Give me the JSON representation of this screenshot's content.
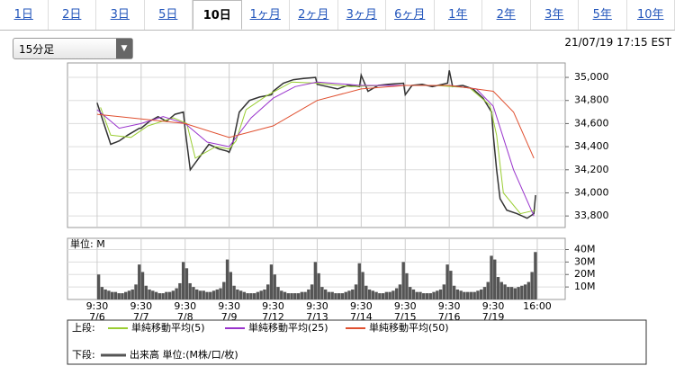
{
  "tabs": [
    "1日",
    "2日",
    "3日",
    "5日",
    "10日",
    "1ヶ月",
    "2ヶ月",
    "3ヶ月",
    "6ヶ月",
    "1年",
    "2年",
    "3年",
    "5年",
    "10年"
  ],
  "active_tab_index": 4,
  "interval_select": "15分足",
  "timestamp": "21/07/19 17:15 EST",
  "chart_data": [
    {
      "type": "line",
      "xlim": [
        -17.5,
        276.5
      ],
      "ylim": [
        33700,
        35125
      ],
      "yticks": [
        {
          "value": 35000,
          "label": "35,000"
        },
        {
          "value": 34800,
          "label": "34,800"
        },
        {
          "value": 34600,
          "label": "34,600"
        },
        {
          "value": 34400,
          "label": "34,400"
        },
        {
          "value": 34200,
          "label": "34,200"
        },
        {
          "value": 34000,
          "label": "34,000"
        },
        {
          "value": 33800,
          "label": "33,800"
        }
      ],
      "grid": true,
      "price": {
        "color": "#333333",
        "x": [
          0,
          4,
          8,
          13,
          18,
          25,
          26,
          31,
          36,
          41,
          46,
          51,
          52,
          55,
          60,
          66,
          72,
          77,
          78,
          80,
          84,
          90,
          96,
          103,
          104,
          110,
          116,
          122,
          129,
          130,
          136,
          142,
          148,
          155,
          156,
          160,
          166,
          172,
          181,
          182,
          186,
          192,
          198,
          207,
          208,
          210,
          216,
          222,
          228,
          233,
          234,
          236,
          238,
          242,
          248,
          254,
          258,
          259
        ],
        "values": [
          34780,
          34600,
          34420,
          34450,
          34500,
          34560,
          34560,
          34620,
          34660,
          34620,
          34680,
          34700,
          34550,
          34200,
          34300,
          34420,
          34380,
          34360,
          34350,
          34420,
          34700,
          34800,
          34830,
          34850,
          34880,
          34950,
          34980,
          34990,
          35000,
          34940,
          34920,
          34900,
          34930,
          34920,
          35020,
          34880,
          34930,
          34940,
          34950,
          34850,
          34930,
          34940,
          34920,
          34950,
          35060,
          34920,
          34930,
          34900,
          34820,
          34700,
          34500,
          34200,
          33950,
          33850,
          33820,
          33780,
          33820,
          33980
        ]
      },
      "legend_label": "上段:",
      "series": [
        {
          "name": "単純移動平均(5)",
          "color": "#9acd32",
          "x": [
            2,
            8,
            20,
            30,
            45,
            53,
            58,
            70,
            78,
            82,
            88,
            100,
            115,
            130,
            150,
            170,
            200,
            220,
            232,
            236,
            240,
            250,
            259
          ],
          "values": [
            34740,
            34500,
            34480,
            34580,
            34650,
            34600,
            34300,
            34400,
            34380,
            34450,
            34720,
            34840,
            34960,
            34950,
            34920,
            34930,
            34930,
            34910,
            34760,
            34500,
            34000,
            33820,
            33850
          ]
        },
        {
          "name": "単純移動平均(25)",
          "color": "#9933cc",
          "x": [
            0,
            13,
            26,
            39,
            52,
            65,
            78,
            91,
            104,
            117,
            130,
            156,
            182,
            208,
            224,
            234,
            246,
            258
          ],
          "values": [
            34720,
            34560,
            34600,
            34660,
            34600,
            34440,
            34400,
            34650,
            34820,
            34920,
            34960,
            34930,
            34930,
            34930,
            34900,
            34750,
            34200,
            33800
          ]
        },
        {
          "name": "単純移動平均(50)",
          "color": "#e05030",
          "x": [
            0,
            26,
            52,
            78,
            104,
            130,
            156,
            182,
            208,
            234,
            246,
            258
          ],
          "values": [
            34680,
            34640,
            34600,
            34480,
            34580,
            34800,
            34900,
            34930,
            34930,
            34880,
            34700,
            34300
          ]
        }
      ]
    },
    {
      "type": "bar",
      "unit_label": "単位: M",
      "xlim": [
        -17.5,
        276.5
      ],
      "ylim": [
        0,
        49
      ],
      "yticks": [
        {
          "value": 40,
          "label": "40M"
        },
        {
          "value": 30,
          "label": "30M"
        },
        {
          "value": 20,
          "label": "20M"
        },
        {
          "value": 10,
          "label": "10M"
        }
      ],
      "xticks": [
        {
          "value": 0,
          "label": "9:30"
        },
        {
          "value": 26,
          "label": "9:30"
        },
        {
          "value": 52,
          "label": "9:30"
        },
        {
          "value": 78,
          "label": "9:30"
        },
        {
          "value": 104,
          "label": "9:30"
        },
        {
          "value": 130,
          "label": "9:30"
        },
        {
          "value": 156,
          "label": "9:30"
        },
        {
          "value": 182,
          "label": "9:30"
        },
        {
          "value": 208,
          "label": "9:30"
        },
        {
          "value": 234,
          "label": "9:30"
        },
        {
          "value": 260,
          "label": "16:00"
        }
      ],
      "date_labels": [
        "7/6",
        "7/7",
        "7/8",
        "7/9",
        "7/12",
        "7/13",
        "7/14",
        "7/15",
        "7/16",
        "7/19"
      ],
      "legend_label": "下段:",
      "name": "出来高 単位:(M株/口/枚)",
      "color": "#555555",
      "x": [
        0,
        2,
        4,
        6,
        8,
        10,
        12,
        14,
        16,
        18,
        20,
        22,
        24,
        26,
        28,
        30,
        32,
        34,
        36,
        38,
        40,
        42,
        44,
        46,
        48,
        50,
        52,
        54,
        56,
        58,
        60,
        62,
        64,
        66,
        68,
        70,
        72,
        74,
        76,
        78,
        80,
        82,
        84,
        86,
        88,
        90,
        92,
        94,
        96,
        98,
        100,
        102,
        104,
        106,
        108,
        110,
        112,
        114,
        116,
        118,
        120,
        122,
        124,
        126,
        128,
        130,
        132,
        134,
        136,
        138,
        140,
        142,
        144,
        146,
        148,
        150,
        152,
        154,
        156,
        158,
        160,
        162,
        164,
        166,
        168,
        170,
        172,
        174,
        176,
        178,
        180,
        182,
        184,
        186,
        188,
        190,
        192,
        194,
        196,
        198,
        200,
        202,
        204,
        206,
        208,
        210,
        212,
        214,
        216,
        218,
        220,
        222,
        224,
        226,
        228,
        230,
        232,
        234,
        236,
        238,
        240,
        242,
        244,
        246,
        248,
        250,
        252,
        254,
        256,
        258
      ],
      "values": [
        20,
        10,
        8,
        7,
        6,
        6,
        5,
        5,
        6,
        7,
        8,
        12,
        28,
        22,
        11,
        8,
        7,
        6,
        5,
        5,
        6,
        6,
        7,
        9,
        13,
        30,
        25,
        13,
        10,
        8,
        7,
        7,
        6,
        6,
        7,
        8,
        9,
        14,
        32,
        22,
        11,
        8,
        7,
        6,
        5,
        5,
        5,
        6,
        7,
        8,
        12,
        28,
        20,
        10,
        7,
        6,
        5,
        5,
        5,
        5,
        6,
        6,
        8,
        12,
        30,
        21,
        10,
        8,
        6,
        6,
        5,
        5,
        5,
        6,
        7,
        8,
        12,
        29,
        22,
        11,
        8,
        7,
        6,
        5,
        5,
        6,
        6,
        7,
        9,
        12,
        30,
        21,
        10,
        8,
        6,
        6,
        5,
        5,
        5,
        6,
        7,
        8,
        12,
        28,
        23,
        11,
        8,
        7,
        6,
        6,
        6,
        6,
        7,
        8,
        10,
        14,
        35,
        32,
        18,
        14,
        12,
        10,
        10,
        9,
        10,
        11,
        12,
        14,
        22,
        38
      ]
    }
  ]
}
